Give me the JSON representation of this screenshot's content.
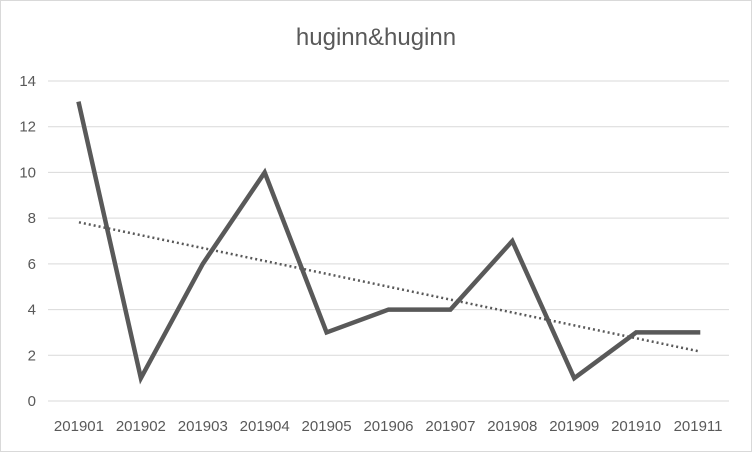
{
  "chart_data": {
    "type": "line",
    "title": "huginn&huginn",
    "xlabel": "",
    "ylabel": "",
    "categories": [
      "201901",
      "201902",
      "201903",
      "201904",
      "201905",
      "201906",
      "201907",
      "201908",
      "201909",
      "201910",
      "201911"
    ],
    "series": [
      {
        "values": [
          13,
          1,
          6,
          10,
          3,
          4,
          4,
          7,
          1,
          3,
          3
        ],
        "color": "#595959",
        "style": "solid"
      }
    ],
    "trendline": {
      "type": "linear",
      "color": "#595959",
      "style": "dotted"
    },
    "yticks": [
      "0",
      "2",
      "4",
      "6",
      "8",
      "10",
      "12",
      "14"
    ],
    "ylim": [
      0,
      14
    ],
    "grid": true,
    "legend": "none"
  }
}
